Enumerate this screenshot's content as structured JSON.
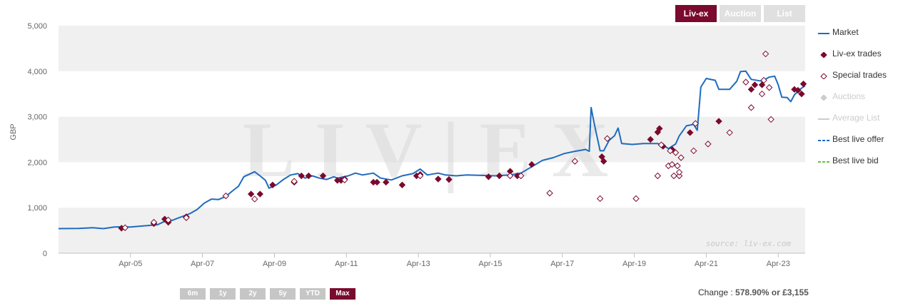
{
  "tabs": [
    {
      "label": "Liv-ex",
      "active": true
    },
    {
      "label": "Auction",
      "active": false
    },
    {
      "label": "List",
      "active": false
    }
  ],
  "ranges": [
    {
      "label": "6m",
      "active": false
    },
    {
      "label": "1y",
      "active": false
    },
    {
      "label": "2y",
      "active": false
    },
    {
      "label": "5y",
      "active": false
    },
    {
      "label": "YTD",
      "active": false
    },
    {
      "label": "Max",
      "active": true
    }
  ],
  "change": {
    "label": "Change :",
    "value": "578.90% or £3,155"
  },
  "watermark": {
    "logo_text": "LIV|EX",
    "source": "source: liv-ex.com"
  },
  "colors": {
    "accent": "#7a0a2e",
    "market": "#1f6bbf",
    "special": "#7a0a2e",
    "disabled": "#cccccc"
  },
  "legend": [
    {
      "label": "Market",
      "symbol": "line",
      "color": "#1f6bbf",
      "enabled": true
    },
    {
      "label": "Liv-ex trades",
      "symbol": "diamond-filled",
      "color": "#7a0a2e",
      "enabled": true
    },
    {
      "label": "Special trades",
      "symbol": "diamond-open",
      "color": "#7a0a2e",
      "enabled": true
    },
    {
      "label": "Auctions",
      "symbol": "diamond-filled",
      "color": "#cccccc",
      "enabled": false
    },
    {
      "label": "Average List",
      "symbol": "line",
      "color": "#cccccc",
      "enabled": false
    },
    {
      "label": "Best live offer",
      "symbol": "dash",
      "color": "#1f6bbf",
      "enabled": true
    },
    {
      "label": "Best live bid",
      "symbol": "dash",
      "color": "#6bbf3a",
      "enabled": true
    }
  ],
  "chart_data": {
    "type": "line",
    "ylabel": "GBP",
    "ylim": [
      0,
      5000
    ],
    "xlim": [
      2003.25,
      2024.0
    ],
    "yticks": [
      {
        "v": 0,
        "label": "0"
      },
      {
        "v": 1000,
        "label": "1,000"
      },
      {
        "v": 2000,
        "label": "2,000"
      },
      {
        "v": 3000,
        "label": "3,000"
      },
      {
        "v": 4000,
        "label": "4,000"
      },
      {
        "v": 5000,
        "label": "5,000"
      }
    ],
    "xticks": [
      {
        "v": 2005.25,
        "label": "Apr-05"
      },
      {
        "v": 2007.25,
        "label": "Apr-07"
      },
      {
        "v": 2009.25,
        "label": "Apr-09"
      },
      {
        "v": 2011.25,
        "label": "Apr-11"
      },
      {
        "v": 2013.25,
        "label": "Apr-13"
      },
      {
        "v": 2015.25,
        "label": "Apr-15"
      },
      {
        "v": 2017.25,
        "label": "Apr-17"
      },
      {
        "v": 2019.25,
        "label": "Apr-19"
      },
      {
        "v": 2021.25,
        "label": "Apr-21"
      },
      {
        "v": 2023.25,
        "label": "Apr-23"
      }
    ],
    "grid": true,
    "legend_position": "right",
    "series": [
      {
        "name": "Market",
        "style": "line",
        "color": "#1f6bbf",
        "points": [
          [
            2003.25,
            540
          ],
          [
            2003.8,
            545
          ],
          [
            2004.2,
            560
          ],
          [
            2004.5,
            540
          ],
          [
            2004.8,
            575
          ],
          [
            2005.0,
            580
          ],
          [
            2005.25,
            575
          ],
          [
            2005.6,
            600
          ],
          [
            2006.0,
            625
          ],
          [
            2006.2,
            700
          ],
          [
            2006.4,
            720
          ],
          [
            2006.6,
            780
          ],
          [
            2006.9,
            870
          ],
          [
            2007.1,
            960
          ],
          [
            2007.3,
            1100
          ],
          [
            2007.5,
            1190
          ],
          [
            2007.7,
            1180
          ],
          [
            2007.9,
            1250
          ],
          [
            2008.1,
            1380
          ],
          [
            2008.25,
            1470
          ],
          [
            2008.4,
            1680
          ],
          [
            2008.7,
            1790
          ],
          [
            2008.85,
            1700
          ],
          [
            2009.0,
            1600
          ],
          [
            2009.1,
            1430
          ],
          [
            2009.3,
            1500
          ],
          [
            2009.5,
            1620
          ],
          [
            2009.7,
            1720
          ],
          [
            2009.9,
            1750
          ],
          [
            2010.1,
            1650
          ],
          [
            2010.3,
            1700
          ],
          [
            2010.5,
            1650
          ],
          [
            2010.7,
            1620
          ],
          [
            2010.9,
            1680
          ],
          [
            2011.0,
            1650
          ],
          [
            2011.3,
            1700
          ],
          [
            2011.5,
            1760
          ],
          [
            2011.7,
            1720
          ],
          [
            2012.0,
            1760
          ],
          [
            2012.2,
            1650
          ],
          [
            2012.5,
            1610
          ],
          [
            2012.8,
            1700
          ],
          [
            2013.1,
            1750
          ],
          [
            2013.3,
            1850
          ],
          [
            2013.5,
            1720
          ],
          [
            2013.8,
            1760
          ],
          [
            2014.0,
            1720
          ],
          [
            2014.3,
            1700
          ],
          [
            2014.6,
            1720
          ],
          [
            2015.0,
            1710
          ],
          [
            2015.4,
            1700
          ],
          [
            2015.8,
            1720
          ],
          [
            2016.1,
            1760
          ],
          [
            2016.4,
            1900
          ],
          [
            2016.7,
            2040
          ],
          [
            2017.0,
            2100
          ],
          [
            2017.3,
            2190
          ],
          [
            2017.6,
            2240
          ],
          [
            2017.9,
            2280
          ],
          [
            2018.0,
            2240
          ],
          [
            2018.05,
            3200
          ],
          [
            2018.15,
            2800
          ],
          [
            2018.3,
            2250
          ],
          [
            2018.4,
            2250
          ],
          [
            2018.55,
            2480
          ],
          [
            2018.7,
            2580
          ],
          [
            2018.8,
            2750
          ],
          [
            2018.9,
            2410
          ],
          [
            2019.2,
            2390
          ],
          [
            2019.5,
            2410
          ],
          [
            2019.9,
            2410
          ],
          [
            2020.1,
            2350
          ],
          [
            2020.2,
            2300
          ],
          [
            2020.4,
            2400
          ],
          [
            2020.5,
            2580
          ],
          [
            2020.7,
            2800
          ],
          [
            2020.9,
            2830
          ],
          [
            2021.0,
            2700
          ],
          [
            2021.1,
            3650
          ],
          [
            2021.25,
            3840
          ],
          [
            2021.5,
            3800
          ],
          [
            2021.6,
            3600
          ],
          [
            2021.9,
            3600
          ],
          [
            2022.1,
            3780
          ],
          [
            2022.2,
            3990
          ],
          [
            2022.35,
            4000
          ],
          [
            2022.5,
            3820
          ],
          [
            2022.8,
            3780
          ],
          [
            2023.0,
            3870
          ],
          [
            2023.15,
            3890
          ],
          [
            2023.25,
            3700
          ],
          [
            2023.35,
            3430
          ],
          [
            2023.5,
            3420
          ],
          [
            2023.6,
            3330
          ],
          [
            2023.7,
            3480
          ],
          [
            2023.85,
            3600
          ],
          [
            2024.0,
            3680
          ]
        ]
      },
      {
        "name": "Liv-ex trades",
        "style": "diamond-filled",
        "color": "#7a0a2e",
        "points": [
          [
            2005.0,
            550
          ],
          [
            2005.9,
            650
          ],
          [
            2006.2,
            750
          ],
          [
            2006.3,
            680
          ],
          [
            2006.8,
            800
          ],
          [
            2008.6,
            1300
          ],
          [
            2008.85,
            1300
          ],
          [
            2009.2,
            1500
          ],
          [
            2009.8,
            1560
          ],
          [
            2010.0,
            1700
          ],
          [
            2010.2,
            1700
          ],
          [
            2010.6,
            1700
          ],
          [
            2011.0,
            1600
          ],
          [
            2011.1,
            1600
          ],
          [
            2011.2,
            1630
          ],
          [
            2012.0,
            1560
          ],
          [
            2012.1,
            1560
          ],
          [
            2012.35,
            1560
          ],
          [
            2012.8,
            1500
          ],
          [
            2013.2,
            1700
          ],
          [
            2013.3,
            1730
          ],
          [
            2013.8,
            1630
          ],
          [
            2014.1,
            1620
          ],
          [
            2015.2,
            1680
          ],
          [
            2015.5,
            1700
          ],
          [
            2015.8,
            1800
          ],
          [
            2016.0,
            1700
          ],
          [
            2016.4,
            1950
          ],
          [
            2018.35,
            2120
          ],
          [
            2018.4,
            2020
          ],
          [
            2019.7,
            2500
          ],
          [
            2019.9,
            2660
          ],
          [
            2019.95,
            2740
          ],
          [
            2020.05,
            2350
          ],
          [
            2020.3,
            2280
          ],
          [
            2020.8,
            2650
          ],
          [
            2021.6,
            2900
          ],
          [
            2022.5,
            3600
          ],
          [
            2022.6,
            3700
          ],
          [
            2022.8,
            3700
          ],
          [
            2023.7,
            3600
          ],
          [
            2023.8,
            3580
          ],
          [
            2023.9,
            3500
          ],
          [
            2023.95,
            3720
          ]
        ]
      },
      {
        "name": "Special trades",
        "style": "diamond-open",
        "color": "#7a0a2e",
        "points": [
          [
            2005.1,
            560
          ],
          [
            2005.9,
            680
          ],
          [
            2006.3,
            730
          ],
          [
            2006.8,
            780
          ],
          [
            2007.9,
            1260
          ],
          [
            2008.7,
            1190
          ],
          [
            2009.8,
            1580
          ],
          [
            2011.2,
            1610
          ],
          [
            2013.3,
            1700
          ],
          [
            2015.8,
            1700
          ],
          [
            2016.1,
            1700
          ],
          [
            2016.9,
            1320
          ],
          [
            2017.6,
            2020
          ],
          [
            2018.3,
            1200
          ],
          [
            2018.5,
            2520
          ],
          [
            2019.3,
            1200
          ],
          [
            2019.9,
            1700
          ],
          [
            2020.0,
            2380
          ],
          [
            2020.2,
            1920
          ],
          [
            2020.25,
            2250
          ],
          [
            2020.3,
            1950
          ],
          [
            2020.35,
            1700
          ],
          [
            2020.4,
            2210
          ],
          [
            2020.45,
            1920
          ],
          [
            2020.5,
            1700
          ],
          [
            2020.5,
            1780
          ],
          [
            2020.55,
            2100
          ],
          [
            2020.9,
            2250
          ],
          [
            2020.95,
            2850
          ],
          [
            2021.3,
            2400
          ],
          [
            2021.9,
            2650
          ],
          [
            2022.35,
            3760
          ],
          [
            2022.5,
            3200
          ],
          [
            2022.8,
            3500
          ],
          [
            2022.85,
            3800
          ],
          [
            2022.9,
            4380
          ],
          [
            2023.0,
            3640
          ],
          [
            2023.05,
            2940
          ]
        ]
      }
    ]
  }
}
